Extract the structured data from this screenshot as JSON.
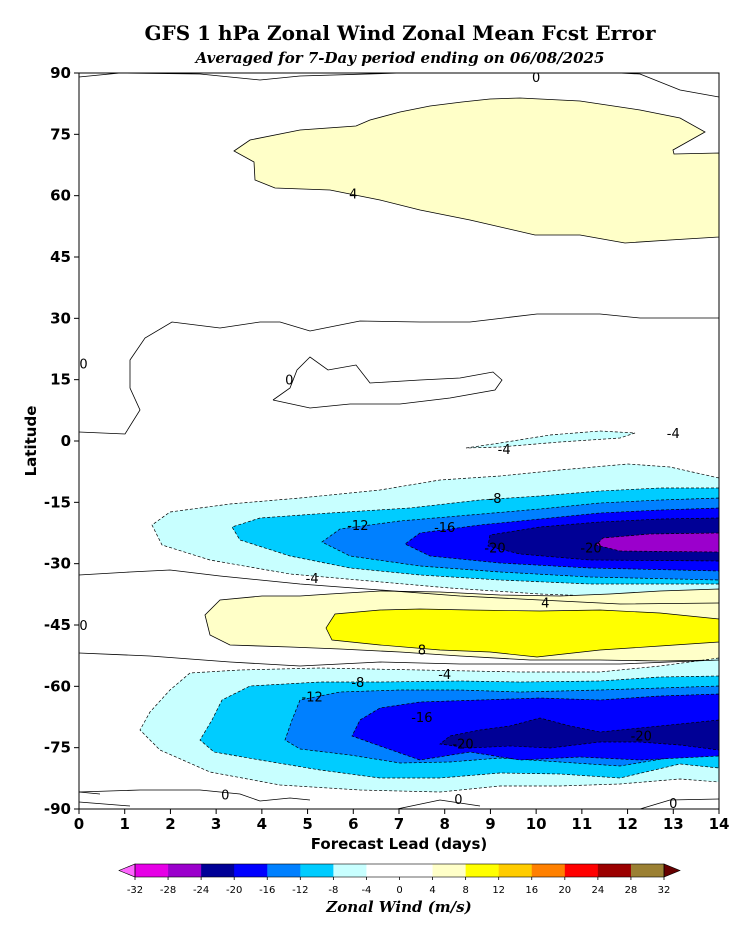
{
  "chart_data": {
    "type": "contour",
    "title": "GFS 1 hPa Zonal Wind Zonal Mean Fcst Error",
    "subtitle": "Averaged for 7-Day period ending on 06/08/2025",
    "xlabel": "Forecast Lead (days)",
    "ylabel": "Latitude",
    "xlim": [
      0,
      14
    ],
    "ylim": [
      -90,
      90
    ],
    "xticks": [
      0,
      1,
      2,
      3,
      4,
      5,
      6,
      7,
      8,
      9,
      10,
      11,
      12,
      13,
      14
    ],
    "yticks": [
      90,
      75,
      60,
      45,
      30,
      15,
      0,
      -15,
      -30,
      -45,
      -60,
      -75,
      -90
    ],
    "contour_labels": [
      {
        "text": "0",
        "x": 10.0,
        "y": 89
      },
      {
        "text": "4",
        "x": 6.0,
        "y": 60.5
      },
      {
        "text": "0",
        "x": 4.6,
        "y": 15
      },
      {
        "text": "0",
        "x": 0.1,
        "y": 19
      },
      {
        "text": "-4",
        "x": 9.3,
        "y": -2
      },
      {
        "text": "-4",
        "x": 13.0,
        "y": 2
      },
      {
        "text": "-8",
        "x": 9.1,
        "y": -14
      },
      {
        "text": "-12",
        "x": 6.1,
        "y": -20.5
      },
      {
        "text": "-16",
        "x": 8.0,
        "y": -21
      },
      {
        "text": "-20",
        "x": 9.1,
        "y": -26
      },
      {
        "text": "-20",
        "x": 11.2,
        "y": -26
      },
      {
        "text": "-4",
        "x": 5.1,
        "y": -33.5
      },
      {
        "text": "0",
        "x": 0.1,
        "y": -45
      },
      {
        "text": "4",
        "x": 10.2,
        "y": -39.5
      },
      {
        "text": "8",
        "x": 7.5,
        "y": -51
      },
      {
        "text": "-4",
        "x": 8.0,
        "y": -57
      },
      {
        "text": "-8",
        "x": 6.1,
        "y": -59
      },
      {
        "text": "-12",
        "x": 5.1,
        "y": -62.5
      },
      {
        "text": "-16",
        "x": 7.5,
        "y": -67.5
      },
      {
        "text": "-20",
        "x": 8.4,
        "y": -74
      },
      {
        "text": "-20",
        "x": 12.3,
        "y": -72
      },
      {
        "text": "0",
        "x": 3.2,
        "y": -86.5
      },
      {
        "text": "0",
        "x": 8.3,
        "y": -87.5
      },
      {
        "text": "0",
        "x": 13.0,
        "y": -88.5
      }
    ],
    "colorbar": {
      "label": "Zonal Wind (m/s)",
      "ticks": [
        "-32",
        "-28",
        "-24",
        "-20",
        "-16",
        "-12",
        "-8",
        "-4",
        "0",
        "4",
        "8",
        "12",
        "16",
        "20",
        "24",
        "28",
        "32"
      ],
      "colors": [
        "#E600E6",
        "#9B00CC",
        "#000096",
        "#0000FF",
        "#0080FF",
        "#00CCFF",
        "#C8FFFF",
        "#FFFFFF",
        "#FFFFFF",
        "#FFFFC8",
        "#FFFF00",
        "#FFCC00",
        "#FF8000",
        "#FF0000",
        "#9B0000",
        "#9B8033"
      ],
      "under_color": "#FF66FF",
      "over_color": "#660000"
    }
  }
}
